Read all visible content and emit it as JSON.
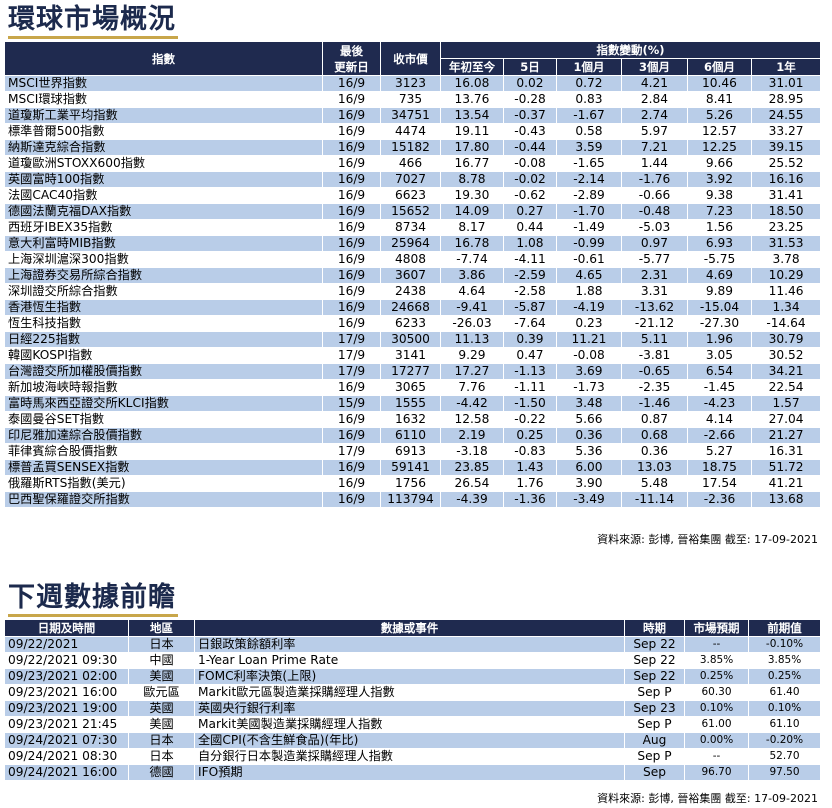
{
  "market_title": "環球市場概況",
  "market_headers": {
    "index": "指數",
    "date": "最後\n更新日",
    "close": "收市價",
    "change_group": "指數變動(%)",
    "periods": [
      "年初至今",
      "5日",
      "1個月",
      "3個月",
      "6個月",
      "1年"
    ]
  },
  "market_rows": [
    {
      "name": "MSCI世界指數",
      "date": "16/9",
      "close": "3123",
      "v": [
        "16.08",
        "0.02",
        "0.72",
        "4.21",
        "10.46",
        "31.01"
      ]
    },
    {
      "name": "MSCI環球指數",
      "date": "16/9",
      "close": "735",
      "v": [
        "13.76",
        "-0.28",
        "0.83",
        "2.84",
        "8.41",
        "28.95"
      ]
    },
    {
      "name": "道瓊斯工業平均指數",
      "date": "16/9",
      "close": "34751",
      "v": [
        "13.54",
        "-0.37",
        "-1.67",
        "2.74",
        "5.26",
        "24.55"
      ]
    },
    {
      "name": "標準普爾500指數",
      "date": "16/9",
      "close": "4474",
      "v": [
        "19.11",
        "-0.43",
        "0.58",
        "5.97",
        "12.57",
        "33.27"
      ]
    },
    {
      "name": "納斯達克綜合指數",
      "date": "16/9",
      "close": "15182",
      "v": [
        "17.80",
        "-0.44",
        "3.59",
        "7.21",
        "12.25",
        "39.15"
      ]
    },
    {
      "name": "道瓊歐洲STOXX600指數",
      "date": "16/9",
      "close": "466",
      "v": [
        "16.77",
        "-0.08",
        "-1.65",
        "1.44",
        "9.66",
        "25.52"
      ]
    },
    {
      "name": "英國富時100指數",
      "date": "16/9",
      "close": "7027",
      "v": [
        "8.78",
        "-0.02",
        "-2.14",
        "-1.76",
        "3.92",
        "16.16"
      ]
    },
    {
      "name": "法國CAC40指數",
      "date": "16/9",
      "close": "6623",
      "v": [
        "19.30",
        "-0.62",
        "-2.89",
        "-0.66",
        "9.38",
        "31.41"
      ]
    },
    {
      "name": "德國法蘭克福DAX指數",
      "date": "16/9",
      "close": "15652",
      "v": [
        "14.09",
        "0.27",
        "-1.70",
        "-0.48",
        "7.23",
        "18.50"
      ]
    },
    {
      "name": "西班牙IBEX35指數",
      "date": "16/9",
      "close": "8734",
      "v": [
        "8.17",
        "0.44",
        "-1.49",
        "-5.03",
        "1.56",
        "23.25"
      ]
    },
    {
      "name": "意大利富時MIB指數",
      "date": "16/9",
      "close": "25964",
      "v": [
        "16.78",
        "1.08",
        "-0.99",
        "0.97",
        "6.93",
        "31.53"
      ]
    },
    {
      "name": "上海深圳滬深300指數",
      "date": "16/9",
      "close": "4808",
      "v": [
        "-7.74",
        "-4.11",
        "-0.61",
        "-5.77",
        "-5.75",
        "3.78"
      ]
    },
    {
      "name": "上海證券交易所綜合指數",
      "date": "16/9",
      "close": "3607",
      "v": [
        "3.86",
        "-2.59",
        "4.65",
        "2.31",
        "4.69",
        "10.29"
      ]
    },
    {
      "name": "深圳證交所綜合指數",
      "date": "16/9",
      "close": "2438",
      "v": [
        "4.64",
        "-2.58",
        "1.88",
        "3.31",
        "9.89",
        "11.46"
      ]
    },
    {
      "name": "香港恆生指數",
      "date": "16/9",
      "close": "24668",
      "v": [
        "-9.41",
        "-5.87",
        "-4.19",
        "-13.62",
        "-15.04",
        "1.34"
      ]
    },
    {
      "name": "恆生科技指數",
      "date": "16/9",
      "close": "6233",
      "v": [
        "-26.03",
        "-7.64",
        "0.23",
        "-21.12",
        "-27.30",
        "-14.64"
      ]
    },
    {
      "name": "日經225指數",
      "date": "17/9",
      "close": "30500",
      "v": [
        "11.13",
        "0.39",
        "11.21",
        "5.11",
        "1.96",
        "30.79"
      ]
    },
    {
      "name": "韓國KOSPI指數",
      "date": "17/9",
      "close": "3141",
      "v": [
        "9.29",
        "0.47",
        "-0.08",
        "-3.81",
        "3.05",
        "30.52"
      ]
    },
    {
      "name": "台灣證交所加權股價指數",
      "date": "17/9",
      "close": "17277",
      "v": [
        "17.27",
        "-1.13",
        "3.69",
        "-0.65",
        "6.54",
        "34.21"
      ]
    },
    {
      "name": "新加坡海峽時報指數",
      "date": "16/9",
      "close": "3065",
      "v": [
        "7.76",
        "-1.11",
        "-1.73",
        "-2.35",
        "-1.45",
        "22.54"
      ]
    },
    {
      "name": "富時馬來西亞證交所KLCI指數",
      "date": "15/9",
      "close": "1555",
      "v": [
        "-4.42",
        "-1.50",
        "3.48",
        "-1.46",
        "-4.23",
        "1.57"
      ]
    },
    {
      "name": "泰國曼谷SET指數",
      "date": "16/9",
      "close": "1632",
      "v": [
        "12.58",
        "-0.22",
        "5.66",
        "0.87",
        "4.14",
        "27.04"
      ]
    },
    {
      "name": "印尼雅加達綜合股價指數",
      "date": "16/9",
      "close": "6110",
      "v": [
        "2.19",
        "0.25",
        "0.36",
        "0.68",
        "-2.66",
        "21.27"
      ]
    },
    {
      "name": "菲律賓綜合股價指數",
      "date": "17/9",
      "close": "6913",
      "v": [
        "-3.18",
        "-0.83",
        "5.36",
        "0.36",
        "5.27",
        "16.31"
      ]
    },
    {
      "name": "標普孟買SENSEX指數",
      "date": "16/9",
      "close": "59141",
      "v": [
        "23.85",
        "1.43",
        "6.00",
        "13.03",
        "18.75",
        "51.72"
      ]
    },
    {
      "name": "俄羅斯RTS指數(美元)",
      "date": "16/9",
      "close": "1756",
      "v": [
        "26.54",
        "1.76",
        "3.90",
        "5.48",
        "17.54",
        "41.21"
      ]
    },
    {
      "name": "巴西聖保羅證交所指數",
      "date": "16/9",
      "close": "113794",
      "v": [
        "-4.39",
        "-1.36",
        "-3.49",
        "-11.14",
        "-2.36",
        "13.68"
      ]
    }
  ],
  "market_source": "資料來源: 彭博, 晉裕集團 截至: 17-09-2021",
  "calendar_title": "下週數據前瞻",
  "calendar_headers": {
    "datetime": "日期及時間",
    "region": "地區",
    "event": "數據或事件",
    "period": "時期",
    "forecast": "市場預期",
    "previous": "前期值"
  },
  "calendar_rows": [
    {
      "datetime": "09/22/2021",
      "region": "日本",
      "event": "日銀政策餘額利率",
      "period": "Sep 22",
      "forecast": "--",
      "previous": "-0.10%"
    },
    {
      "datetime": "09/22/2021 09:30",
      "region": "中國",
      "event": "1-Year Loan Prime Rate",
      "period": "Sep 22",
      "forecast": "3.85%",
      "previous": "3.85%"
    },
    {
      "datetime": "09/23/2021 02:00",
      "region": "美國",
      "event": "FOMC利率決策(上限)",
      "period": "Sep 22",
      "forecast": "0.25%",
      "previous": "0.25%"
    },
    {
      "datetime": "09/23/2021 16:00",
      "region": "歐元區",
      "event": "Markit歐元區製造業採購經理人指數",
      "period": "Sep P",
      "forecast": "60.30",
      "previous": "61.40"
    },
    {
      "datetime": "09/23/2021 19:00",
      "region": "英國",
      "event": "英國央行銀行利率",
      "period": "Sep 23",
      "forecast": "0.10%",
      "previous": "0.10%"
    },
    {
      "datetime": "09/23/2021 21:45",
      "region": "美國",
      "event": "Markit美國製造業採購經理人指數",
      "period": "Sep P",
      "forecast": "61.00",
      "previous": "61.10"
    },
    {
      "datetime": "09/24/2021 07:30",
      "region": "日本",
      "event": "全國CPI(不含生鮮食品)(年比)",
      "period": "Aug",
      "forecast": "0.00%",
      "previous": "-0.20%"
    },
    {
      "datetime": "09/24/2021 08:30",
      "region": "日本",
      "event": "自分銀行日本製造業採購經理人指數",
      "period": "Sep P",
      "forecast": "--",
      "previous": "52.70"
    },
    {
      "datetime": "09/24/2021 16:00",
      "region": "德國",
      "event": "IFO預期",
      "period": "Sep",
      "forecast": "96.70",
      "previous": "97.50"
    }
  ],
  "calendar_source": "資料來源: 彭博, 晉裕集團 截至: 17-09-2021",
  "colors": {
    "header_bg": "#1f2a4f",
    "stripe": "#b9cde8",
    "title": "#1c2a4d",
    "underline": "#c8a64a"
  }
}
